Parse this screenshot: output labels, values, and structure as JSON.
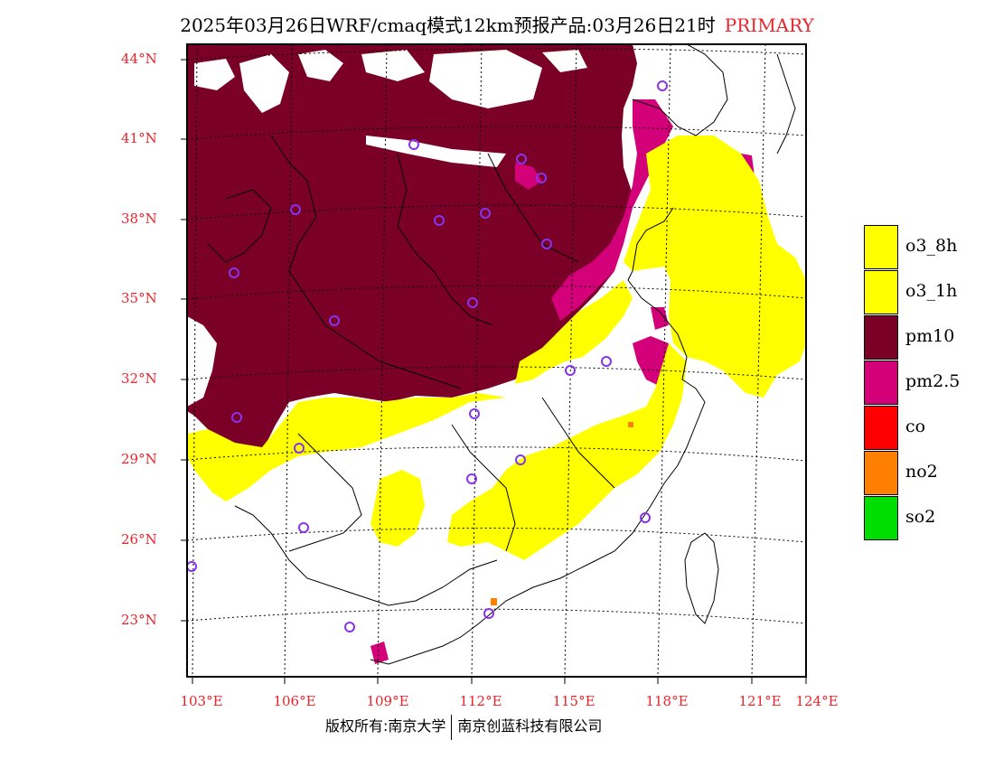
{
  "header": {
    "title": "2025年03月26日WRF/cmaq模式12km预报产品:03月26日21时",
    "tag": "PRIMARY"
  },
  "axes": {
    "lat_labels": [
      "44°N",
      "41°N",
      "38°N",
      "35°N",
      "32°N",
      "29°N",
      "26°N",
      "23°N"
    ],
    "lon_labels": [
      "103°E",
      "106°E",
      "109°E",
      "112°E",
      "115°E",
      "118°E",
      "121°E",
      "124°E"
    ]
  },
  "legend": {
    "items": [
      {
        "label": "o3_8h",
        "color": "#ffff00"
      },
      {
        "label": "o3_1h",
        "color": "#ffff00"
      },
      {
        "label": "pm10",
        "color": "#7a0028"
      },
      {
        "label": "pm2.5",
        "color": "#d4007a"
      },
      {
        "label": "co",
        "color": "#ff0000"
      },
      {
        "label": "no2",
        "color": "#ff7f00"
      },
      {
        "label": "so2",
        "color": "#00dd00"
      }
    ]
  },
  "footer": {
    "left": "版权所有:南京大学",
    "right": "南京创蓝科技有限公司"
  },
  "colors": {
    "axis_label": "#e8242c",
    "pm10": "#7a0028",
    "pm25": "#d4007a",
    "o3": "#ffff00",
    "station": "#8833ee"
  }
}
